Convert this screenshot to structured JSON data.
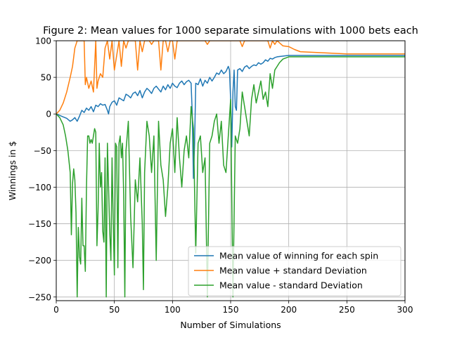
{
  "chart_data": {
    "type": "line",
    "title": "Figure 2: Mean values for 1000 separate simulations with 1000 bets each",
    "xlabel": "Number of Simulations",
    "ylabel": "Winnings in $",
    "xlim": [
      0,
      300
    ],
    "ylim": [
      -255,
      100
    ],
    "xticks": [
      0,
      50,
      100,
      150,
      200,
      250,
      300
    ],
    "yticks": [
      -250,
      -200,
      -150,
      -100,
      -50,
      0,
      50,
      100
    ],
    "grid": true,
    "legend_position": "lower-right",
    "series": [
      {
        "name": "Mean value of winning for each spin",
        "color": "#1f77b4",
        "x": [
          0,
          3,
          6,
          9,
          12,
          14,
          16,
          18,
          20,
          22,
          24,
          26,
          28,
          30,
          32,
          34,
          36,
          38,
          40,
          42,
          44,
          45,
          46,
          48,
          50,
          52,
          54,
          56,
          58,
          60,
          62,
          64,
          66,
          68,
          70,
          72,
          74,
          76,
          78,
          80,
          82,
          84,
          86,
          88,
          90,
          92,
          94,
          96,
          98,
          100,
          102,
          104,
          106,
          108,
          110,
          112,
          114,
          116,
          117,
          118,
          119,
          120,
          122,
          124,
          126,
          128,
          130,
          132,
          134,
          136,
          138,
          140,
          142,
          144,
          146,
          148,
          149,
          150,
          151,
          152,
          153,
          154,
          155,
          156,
          158,
          160,
          162,
          164,
          166,
          168,
          170,
          172,
          174,
          176,
          178,
          180,
          182,
          184,
          186,
          188,
          190,
          195,
          200,
          205,
          210,
          250,
          300
        ],
        "y": [
          0,
          -2,
          -4,
          -6,
          -10,
          -8,
          -5,
          -10,
          -3,
          5,
          2,
          8,
          5,
          10,
          3,
          12,
          10,
          14,
          12,
          13,
          5,
          0,
          10,
          16,
          18,
          12,
          22,
          20,
          18,
          27,
          25,
          22,
          28,
          30,
          25,
          32,
          22,
          30,
          35,
          32,
          28,
          35,
          38,
          34,
          30,
          38,
          33,
          40,
          35,
          42,
          38,
          36,
          42,
          45,
          40,
          44,
          46,
          42,
          0,
          -88,
          -40,
          42,
          40,
          48,
          38,
          46,
          42,
          50,
          45,
          50,
          56,
          54,
          60,
          55,
          58,
          65,
          60,
          20,
          -45,
          30,
          60,
          10,
          5,
          60,
          62,
          58,
          64,
          66,
          62,
          65,
          67,
          66,
          70,
          68,
          70,
          74,
          72,
          76,
          75,
          77,
          78,
          79,
          80,
          80,
          80,
          80,
          80
        ]
      },
      {
        "name": "Mean value + standard Deviation",
        "color": "#ff7f0e",
        "x": [
          0,
          3,
          6,
          9,
          12,
          14,
          16,
          18,
          20,
          22,
          24,
          25,
          26,
          28,
          30,
          32,
          34,
          35,
          36,
          38,
          40,
          42,
          44,
          46,
          48,
          50,
          52,
          54,
          56,
          58,
          60,
          62,
          64,
          66,
          68,
          70,
          72,
          74,
          76,
          78,
          80,
          82,
          84,
          86,
          88,
          90,
          92,
          94,
          96,
          98,
          100,
          102,
          104,
          106,
          108,
          110,
          112,
          114,
          116,
          118,
          120,
          122,
          124,
          126,
          128,
          130,
          132,
          134,
          136,
          138,
          140,
          142,
          144,
          146,
          148,
          150,
          152,
          154,
          156,
          158,
          160,
          162,
          164,
          166,
          168,
          170,
          172,
          174,
          176,
          178,
          180,
          182,
          184,
          186,
          188,
          190,
          195,
          200,
          205,
          210,
          250,
          300
        ],
        "y": [
          0,
          5,
          15,
          30,
          50,
          65,
          90,
          100,
          100,
          100,
          100,
          40,
          50,
          35,
          45,
          30,
          100,
          35,
          45,
          55,
          50,
          90,
          100,
          75,
          100,
          60,
          80,
          100,
          65,
          100,
          90,
          100,
          100,
          100,
          100,
          60,
          100,
          85,
          100,
          100,
          100,
          95,
          100,
          100,
          100,
          60,
          100,
          100,
          85,
          100,
          100,
          75,
          100,
          100,
          100,
          100,
          100,
          100,
          100,
          100,
          100,
          100,
          100,
          100,
          100,
          95,
          100,
          100,
          100,
          100,
          100,
          100,
          100,
          100,
          100,
          100,
          100,
          100,
          100,
          100,
          92,
          100,
          100,
          100,
          100,
          100,
          100,
          100,
          100,
          100,
          100,
          100,
          90,
          100,
          95,
          100,
          93,
          92,
          88,
          85,
          82,
          82
        ]
      },
      {
        "name": "Mean value - standard Deviation",
        "color": "#2ca02c",
        "x": [
          0,
          3,
          6,
          8,
          10,
          12,
          13,
          14,
          15,
          16,
          17,
          18,
          19,
          20,
          21,
          22,
          23,
          24,
          25,
          26,
          27,
          28,
          29,
          30,
          31,
          32,
          33,
          34,
          35,
          36,
          37,
          38,
          39,
          40,
          41,
          42,
          43,
          44,
          45,
          46,
          47,
          48,
          49,
          50,
          51,
          52,
          53,
          54,
          55,
          56,
          57,
          58,
          59,
          60,
          62,
          64,
          66,
          68,
          70,
          72,
          74,
          75,
          76,
          78,
          80,
          82,
          84,
          86,
          88,
          90,
          92,
          94,
          96,
          98,
          100,
          102,
          104,
          106,
          108,
          110,
          112,
          114,
          116,
          118,
          120,
          122,
          124,
          126,
          128,
          130,
          132,
          134,
          136,
          138,
          140,
          142,
          144,
          146,
          148,
          150,
          152,
          154,
          156,
          158,
          160,
          162,
          164,
          166,
          168,
          170,
          172,
          174,
          176,
          178,
          180,
          182,
          184,
          186,
          188,
          190,
          192,
          195,
          200,
          205,
          210,
          250,
          300
        ],
        "y": [
          0,
          -5,
          -15,
          -30,
          -50,
          -80,
          -165,
          -95,
          -75,
          -90,
          -135,
          -250,
          -155,
          -195,
          -205,
          -115,
          -180,
          -180,
          -215,
          -100,
          -30,
          -30,
          -40,
          -35,
          -40,
          -30,
          -20,
          -25,
          -180,
          -130,
          -40,
          -100,
          -80,
          -160,
          -175,
          -60,
          -250,
          -40,
          -100,
          -160,
          -200,
          -60,
          -145,
          -220,
          -40,
          -45,
          -210,
          -40,
          -30,
          -60,
          -40,
          -110,
          -250,
          -50,
          -10,
          -140,
          -210,
          -90,
          -120,
          -60,
          -150,
          -240,
          -80,
          -10,
          -30,
          -80,
          -30,
          -200,
          -10,
          -70,
          -90,
          -140,
          -100,
          -40,
          -20,
          -80,
          -5,
          -60,
          -100,
          -50,
          -30,
          -60,
          10,
          -20,
          -190,
          -40,
          -30,
          -80,
          -60,
          -250,
          -40,
          -30,
          -10,
          0,
          -40,
          -10,
          -70,
          -80,
          -30,
          20,
          -250,
          -30,
          -40,
          -20,
          30,
          10,
          -10,
          -30,
          20,
          40,
          15,
          30,
          45,
          20,
          30,
          10,
          55,
          35,
          60,
          65,
          70,
          75,
          78,
          78,
          78,
          78,
          78
        ]
      }
    ]
  }
}
